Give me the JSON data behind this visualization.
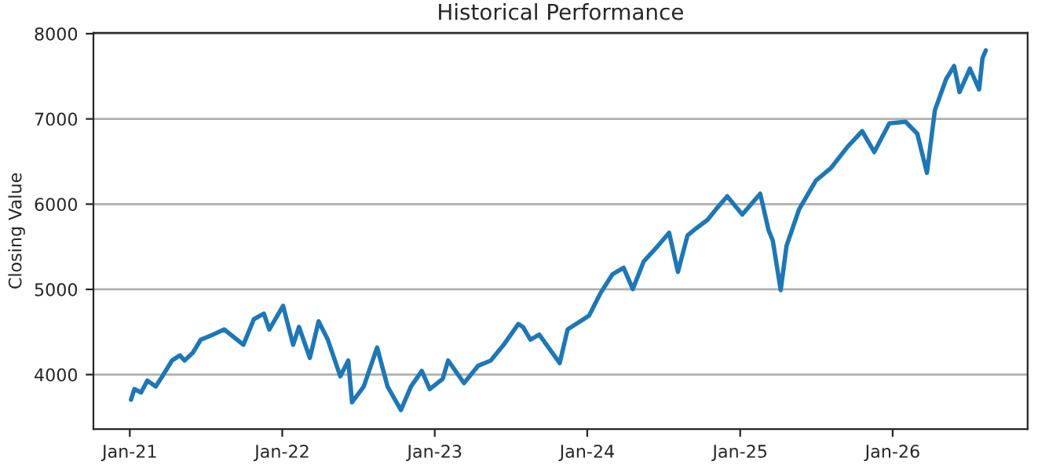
{
  "chart_data": {
    "type": "line",
    "title": "Historical Performance",
    "ylabel": "Closing Value",
    "x": [
      "2021-01-04",
      "2021-01-12",
      "2021-01-28",
      "2021-02-12",
      "2021-03-04",
      "2021-03-20",
      "2021-04-12",
      "2021-05-01",
      "2021-05-12",
      "2021-06-01",
      "2021-06-20",
      "2021-07-20",
      "2021-08-15",
      "2021-09-30",
      "2021-10-25",
      "2021-11-18",
      "2021-12-01",
      "2022-01-03",
      "2022-01-27",
      "2022-02-10",
      "2022-03-08",
      "2022-03-29",
      "2022-04-20",
      "2022-05-20",
      "2022-06-08",
      "2022-06-17",
      "2022-07-15",
      "2022-08-16",
      "2022-09-10",
      "2022-10-12",
      "2022-11-05",
      "2022-12-01",
      "2022-12-20",
      "2023-01-20",
      "2023-02-02",
      "2023-03-12",
      "2023-04-15",
      "2023-05-15",
      "2023-06-15",
      "2023-07-20",
      "2023-07-31",
      "2023-08-18",
      "2023-09-08",
      "2023-10-27",
      "2023-11-15",
      "2024-01-05",
      "2024-02-01",
      "2024-03-01",
      "2024-03-28",
      "2024-04-19",
      "2024-05-15",
      "2024-06-18",
      "2024-07-15",
      "2024-08-05",
      "2024-08-28",
      "2024-09-20",
      "2024-10-15",
      "2024-11-04",
      "2024-12-01",
      "2025-01-06",
      "2025-02-18",
      "2025-03-10",
      "2025-03-20",
      "2025-04-08",
      "2025-04-22",
      "2025-05-22",
      "2025-07-01",
      "2025-08-07",
      "2025-09-15",
      "2025-10-20",
      "2025-11-18",
      "2025-12-24",
      "2026-02-01",
      "2026-03-01",
      "2026-03-24",
      "2026-04-12",
      "2026-05-09",
      "2026-05-28",
      "2026-06-10",
      "2026-07-05",
      "2026-07-27",
      "2026-08-04",
      "2026-08-12"
    ],
    "series": [
      {
        "color": "#1f77b4",
        "values": [
          3706,
          3830,
          3790,
          3930,
          3860,
          3980,
          4165,
          4226,
          4165,
          4257,
          4410,
          4470,
          4530,
          4350,
          4650,
          4715,
          4530,
          4807,
          4350,
          4560,
          4195,
          4625,
          4410,
          3980,
          4165,
          3675,
          3860,
          4318,
          3860,
          3584,
          3860,
          4043,
          3830,
          3950,
          4165,
          3900,
          4104,
          4165,
          4350,
          4593,
          4560,
          4410,
          4470,
          4135,
          4530,
          4690,
          4950,
          5175,
          5254,
          5003,
          5327,
          5510,
          5664,
          5205,
          5633,
          5725,
          5817,
          5939,
          6092,
          5878,
          6122,
          5694,
          5572,
          4991,
          5511,
          5939,
          6275,
          6428,
          6673,
          6856,
          6612,
          6948,
          6966,
          6826,
          6367,
          7101,
          7468,
          7621,
          7315,
          7590,
          7346,
          7713,
          7804
        ]
      }
    ],
    "xlim": [
      "2020-10-06",
      "2026-11-20"
    ],
    "xticks": [
      {
        "value": "2021-01-01",
        "label": "Jan-21"
      },
      {
        "value": "2022-01-01",
        "label": "Jan-22"
      },
      {
        "value": "2023-01-01",
        "label": "Jan-23"
      },
      {
        "value": "2024-01-01",
        "label": "Jan-24"
      },
      {
        "value": "2025-01-01",
        "label": "Jan-25"
      },
      {
        "value": "2026-01-01",
        "label": "Jan-26"
      }
    ],
    "ylim": [
      3360,
      8010
    ],
    "yticks": [
      4000,
      5000,
      6000,
      7000,
      8000
    ],
    "grid": "y",
    "line_style": "solid"
  }
}
